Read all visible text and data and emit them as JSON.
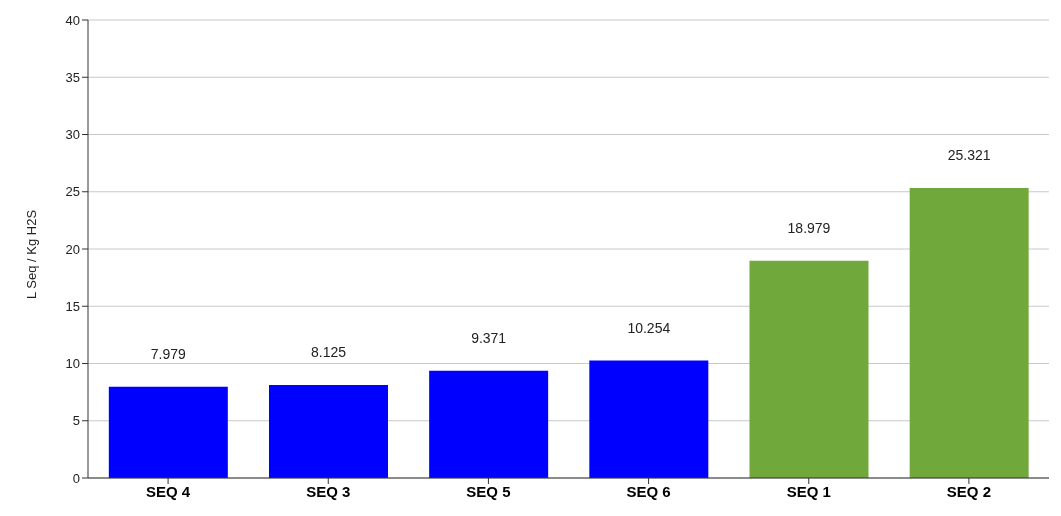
{
  "chart_data": {
    "type": "bar",
    "ylabel": "L Seq / Kg H2S",
    "categories": [
      "SEQ 4",
      "SEQ 3",
      "SEQ 5",
      "SEQ 6",
      "SEQ 1",
      "SEQ 2"
    ],
    "values": [
      7.979,
      8.125,
      9.371,
      10.254,
      18.979,
      25.321
    ],
    "colors": [
      "#0000ff",
      "#0000ff",
      "#0000ff",
      "#0000ff",
      "#70a83c",
      "#70a83c"
    ],
    "ylim": [
      0,
      40
    ],
    "yticks": [
      0,
      5,
      10,
      15,
      20,
      25,
      30,
      35,
      40
    ],
    "grid": "y",
    "data_labels": true
  }
}
